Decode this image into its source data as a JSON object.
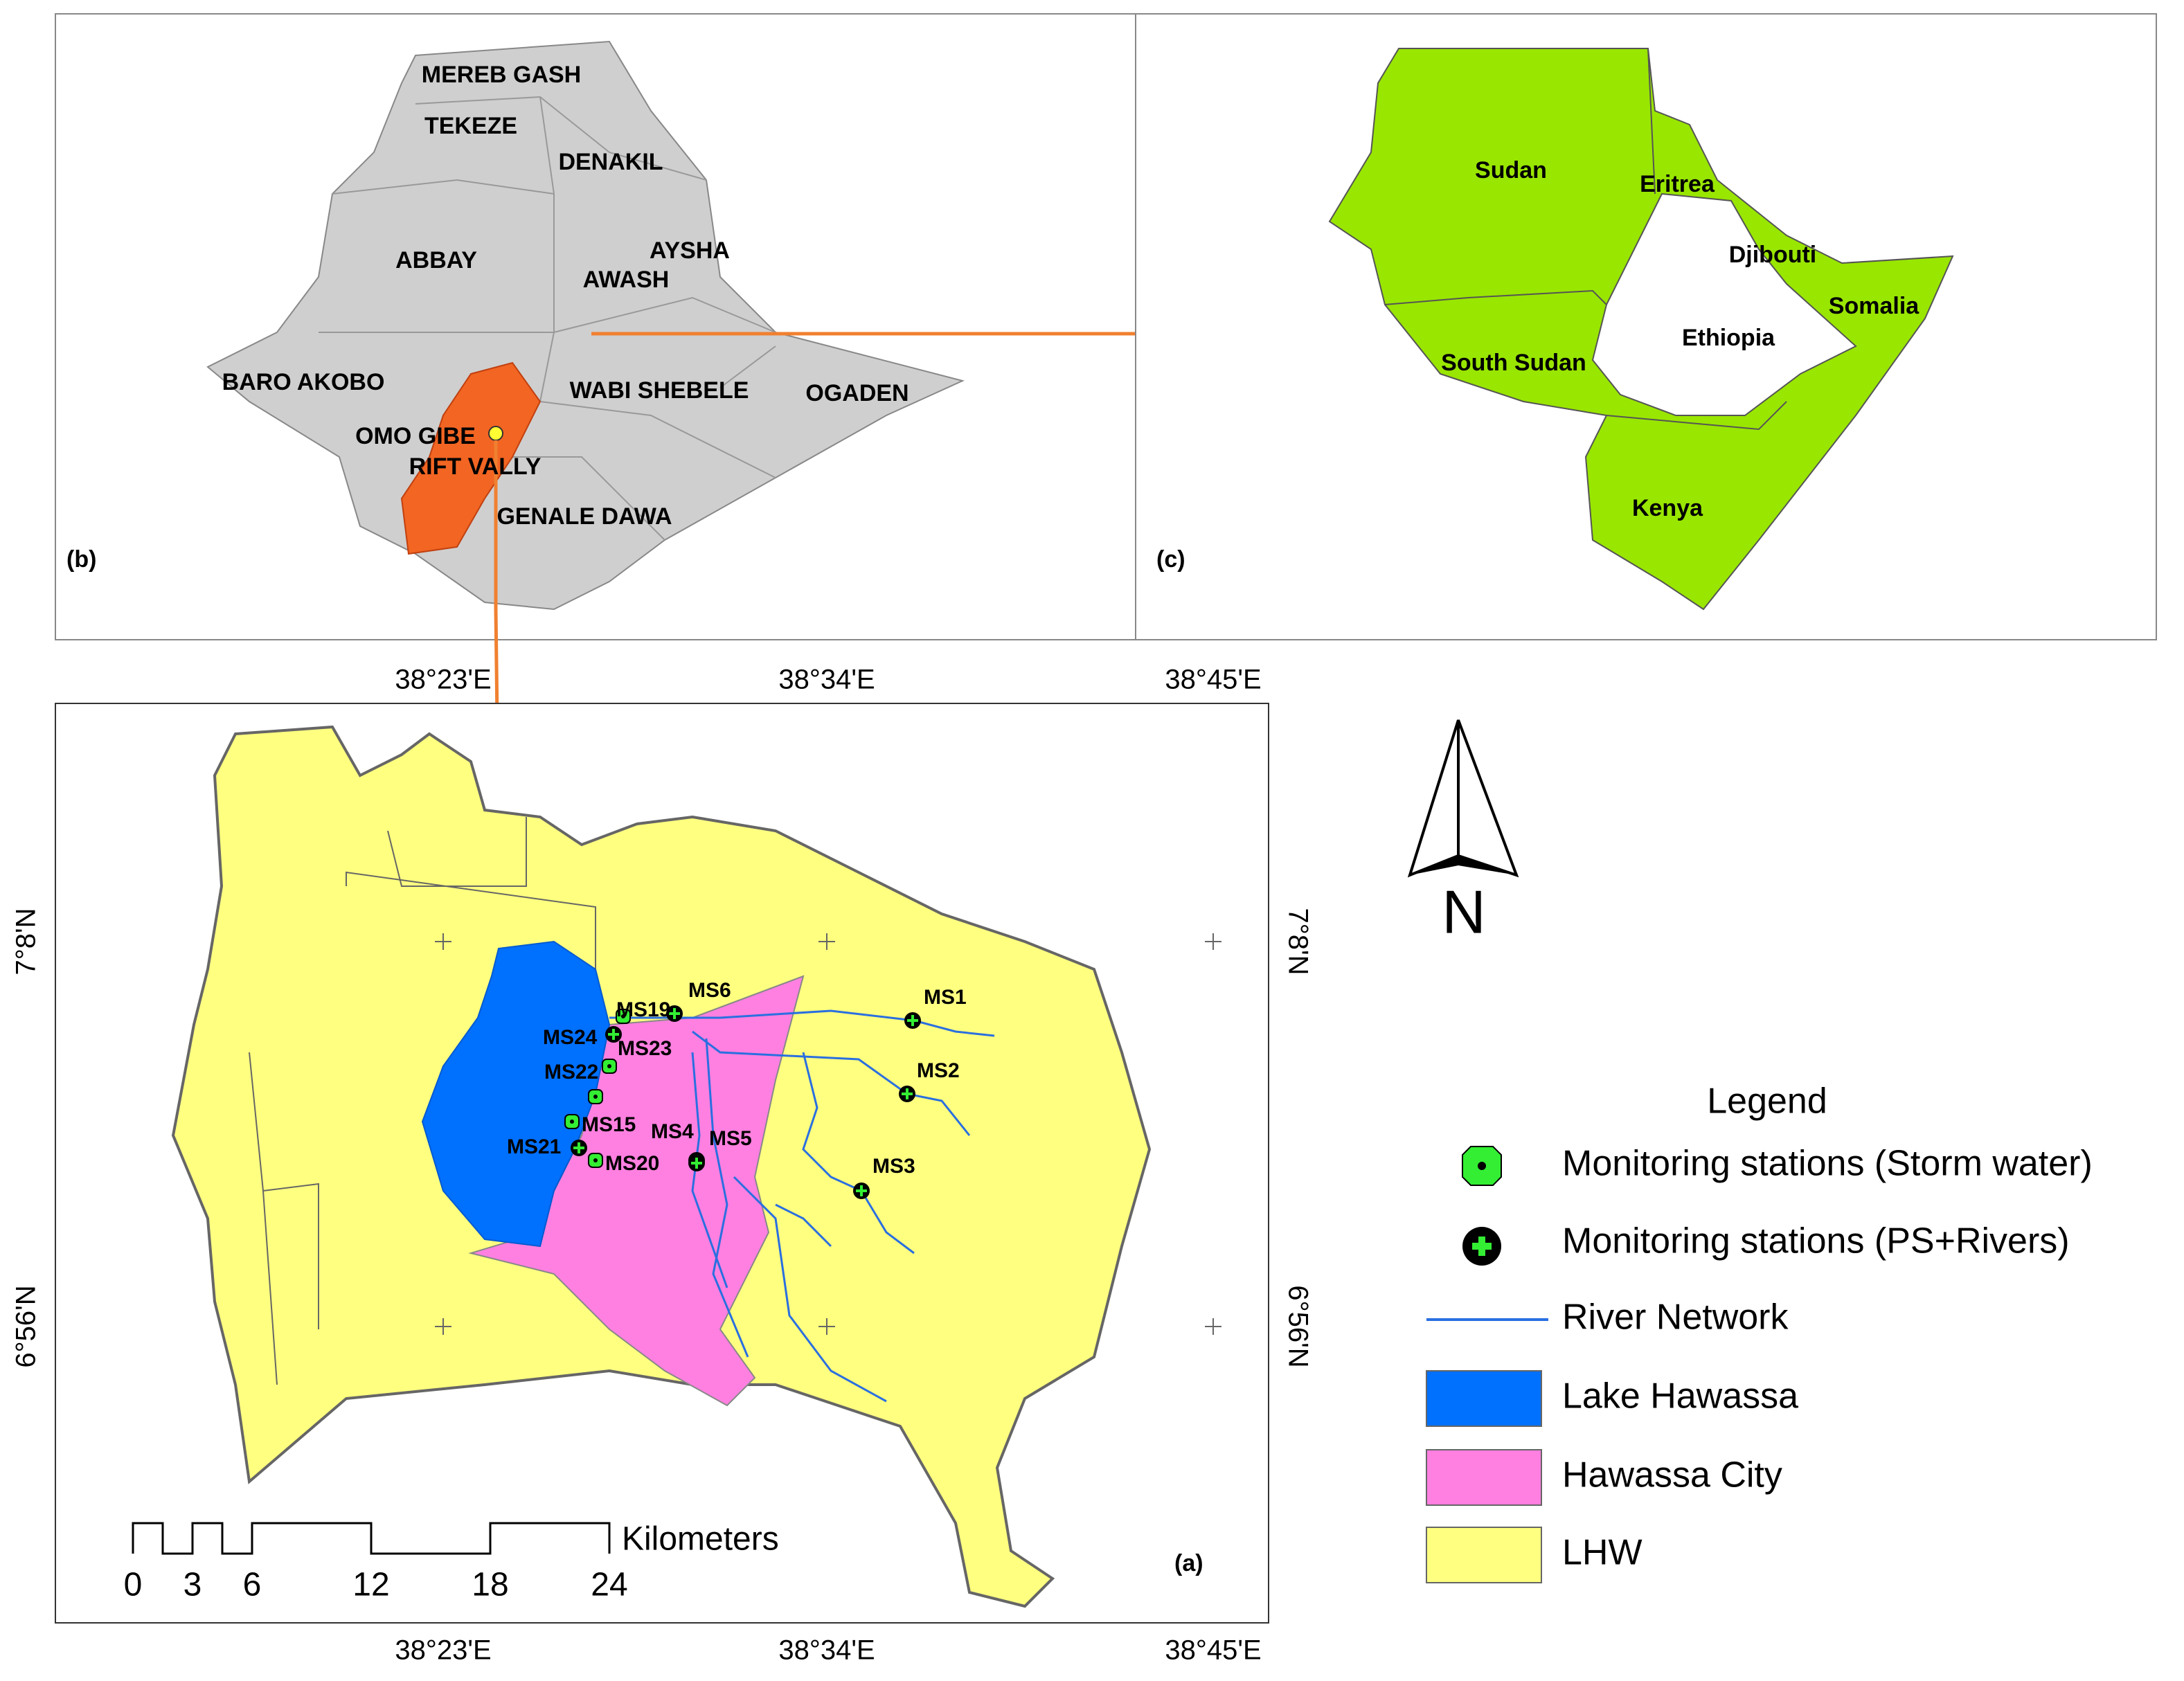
{
  "panel_b": {
    "label": "(b)",
    "basins": [
      "MEREB GASH",
      "TEKEZE",
      "DENAKIL",
      "ABBAY",
      "AYSHA",
      "AWASH",
      "BARO AKOBO",
      "WABI SHEBELE",
      "OGADEN",
      "OMO GIBE",
      "RIFT VALLY",
      "GENALE DAWA"
    ]
  },
  "panel_c": {
    "label": "(c)",
    "countries": [
      "Sudan",
      "Eritrea",
      "Djibouti",
      "Somalia",
      "Ethiopia",
      "South Sudan",
      "Kenya"
    ]
  },
  "panel_a": {
    "label": "(a)",
    "longitudes": [
      "38°23'E",
      "38°34'E",
      "38°45'E"
    ],
    "latitudes": [
      "7°8'N",
      "6°56'N"
    ],
    "stations": [
      "MS6",
      "MS1",
      "MS19",
      "MS24",
      "MS23",
      "MS22",
      "MS2",
      "MS15",
      "MS4",
      "MS5",
      "MS21",
      "MS20",
      "MS3"
    ],
    "scale_bar": {
      "unit": "Kilometers",
      "ticks": [
        0,
        3,
        6,
        12,
        18,
        24
      ]
    },
    "north": "N"
  },
  "legend": {
    "title": "Legend",
    "items": [
      "Monitoring stations (Storm water)",
      "Monitoring stations (PS+Rivers)",
      "River Network",
      "Lake Hawassa",
      "Hawassa City",
      "LHW"
    ]
  }
}
